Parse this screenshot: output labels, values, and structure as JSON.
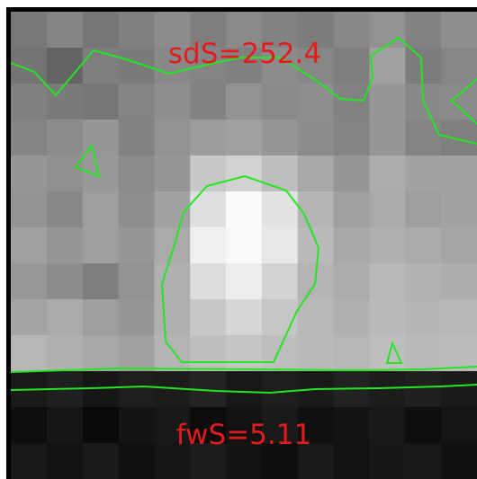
{
  "image": {
    "top_label": "sdS=252.4",
    "bottom_label": "fwS=5.11",
    "label_color": "#e41a1c",
    "contour_color": "#22e622",
    "frame_color": "#000000",
    "pixel_cols": 13,
    "pixel_rows": 13,
    "pixels": [
      [
        120,
        132,
        118,
        128,
        140,
        126,
        138,
        130,
        124,
        136,
        146,
        130,
        142
      ],
      [
        116,
        100,
        126,
        122,
        136,
        132,
        128,
        140,
        134,
        126,
        160,
        124,
        134
      ],
      [
        128,
        122,
        118,
        132,
        142,
        130,
        146,
        138,
        142,
        130,
        150,
        136,
        138
      ],
      [
        132,
        140,
        150,
        130,
        146,
        156,
        160,
        150,
        140,
        132,
        150,
        132,
        128
      ],
      [
        150,
        144,
        152,
        140,
        150,
        200,
        210,
        190,
        168,
        150,
        172,
        162,
        160
      ],
      [
        148,
        136,
        158,
        142,
        162,
        222,
        250,
        226,
        180,
        160,
        170,
        158,
        162
      ],
      [
        160,
        150,
        158,
        150,
        170,
        240,
        248,
        232,
        186,
        168,
        176,
        170,
        166
      ],
      [
        152,
        140,
        126,
        146,
        176,
        220,
        236,
        210,
        180,
        172,
        184,
        178,
        174
      ],
      [
        164,
        170,
        158,
        150,
        176,
        200,
        214,
        198,
        184,
        176,
        186,
        180,
        182
      ],
      [
        182,
        176,
        168,
        160,
        180,
        190,
        196,
        190,
        186,
        182,
        190,
        186,
        188
      ],
      [
        26,
        32,
        22,
        30,
        28,
        36,
        24,
        30,
        26,
        34,
        28,
        32,
        26
      ],
      [
        14,
        22,
        10,
        20,
        24,
        12,
        18,
        26,
        16,
        20,
        24,
        14,
        22
      ],
      [
        24,
        18,
        26,
        16,
        22,
        28,
        20,
        14,
        26,
        18,
        22,
        24,
        16
      ]
    ]
  }
}
